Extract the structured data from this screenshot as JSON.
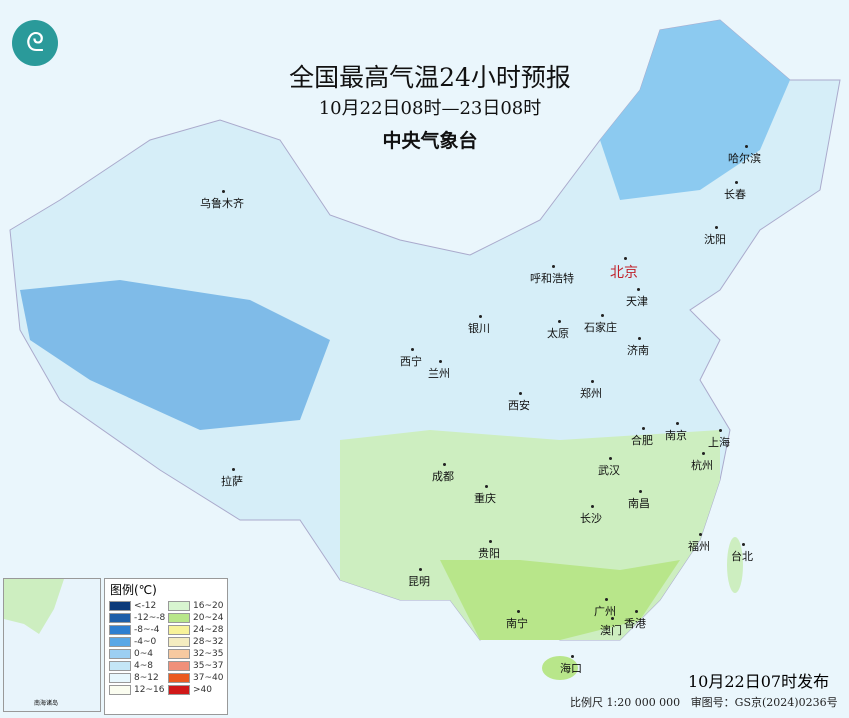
{
  "title": "全国最高气温24小时预报",
  "period": "10月22日08时—23日08时",
  "issuer": "中央气象台",
  "logo_icon": "cma-logo",
  "published": "10月22日07时发布",
  "scale": "比例尺 1:20 000 000",
  "review_no": "审图号：GS京(2024)0236号",
  "inset_label": "南海诸岛",
  "legend": {
    "title": "图例(℃)",
    "items": [
      {
        "label": "<-12",
        "color": "#0b3a7a"
      },
      {
        "label": "16~20",
        "color": "#d8f5d0"
      },
      {
        "label": "-12~-8",
        "color": "#1f5fa8"
      },
      {
        "label": "20~24",
        "color": "#b8e68a"
      },
      {
        "label": "-8~-4",
        "color": "#2f7fd0"
      },
      {
        "label": "24~28",
        "color": "#f7f29a"
      },
      {
        "label": "-4~0",
        "color": "#5aa7e6"
      },
      {
        "label": "28~32",
        "color": "#f4ecc0"
      },
      {
        "label": "0~4",
        "color": "#9ccff2"
      },
      {
        "label": "32~35",
        "color": "#f7c9a0"
      },
      {
        "label": "4~8",
        "color": "#c4e6f6"
      },
      {
        "label": "35~37",
        "color": "#f0907a"
      },
      {
        "label": "8~12",
        "color": "#e8f7fd"
      },
      {
        "label": "37~40",
        "color": "#ea5a20"
      },
      {
        "label": "12~16",
        "color": "#fbfdf0"
      },
      {
        "label": ">40",
        "color": "#d01818"
      }
    ]
  },
  "cities": [
    "乌鲁木齐",
    "哈尔滨",
    "长春",
    "沈阳",
    "呼和浩特",
    "北京",
    "天津",
    "银川",
    "太原",
    "石家庄",
    "西宁",
    "兰州",
    "济南",
    "郑州",
    "西安",
    "合肥",
    "南京",
    "上海",
    "成都",
    "武汉",
    "杭州",
    "拉萨",
    "重庆",
    "长沙",
    "南昌",
    "福州",
    "台北",
    "贵阳",
    "昆明",
    "南宁",
    "广州",
    "香港",
    "澳门",
    "海口"
  ]
}
